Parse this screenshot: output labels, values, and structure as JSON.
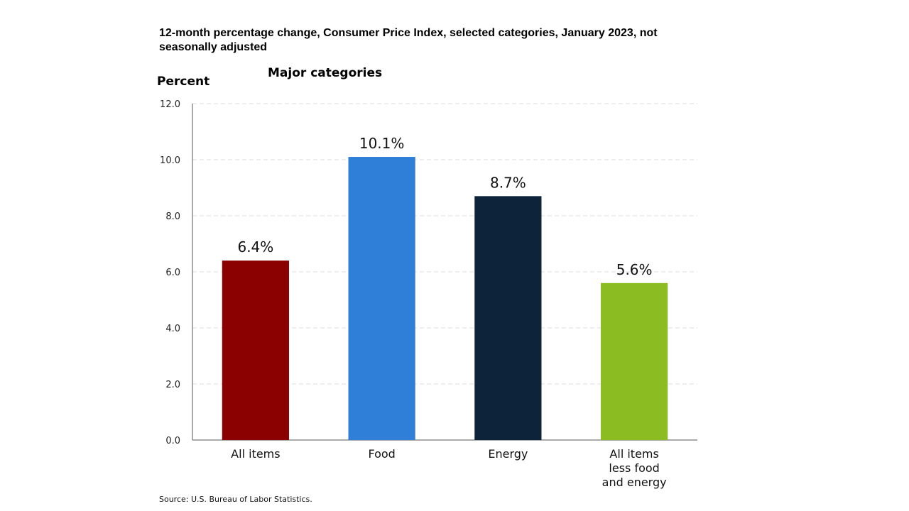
{
  "chart_data": {
    "type": "bar",
    "title": "12-month percentage change, Consumer Price Index, selected categories, January 2023, not seasonally adjusted",
    "subtitle": "Major categories",
    "ylabel": "Percent",
    "categories": [
      [
        "All items"
      ],
      [
        "Food"
      ],
      [
        "Energy"
      ],
      [
        "All items",
        "less food",
        "and energy"
      ]
    ],
    "values": [
      6.4,
      10.1,
      8.7,
      5.6
    ],
    "data_labels": [
      "6.4%",
      "10.1%",
      "8.7%",
      "5.6%"
    ],
    "colors": [
      "#8b0000",
      "#2f7ed8",
      "#0d233a",
      "#8bbc21"
    ],
    "ylim": [
      0,
      12
    ],
    "yticks": [
      "0.0",
      "2.0",
      "4.0",
      "6.0",
      "8.0",
      "10.0",
      "12.0"
    ],
    "grid": true,
    "source": "Source: U.S. Bureau of Labor Statistics."
  }
}
